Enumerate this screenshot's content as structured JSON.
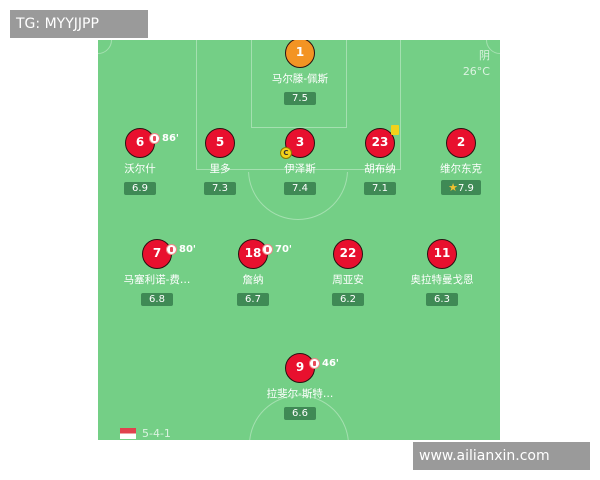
{
  "watermarks": {
    "top_left": "TG: MYYJJPP",
    "bottom_right": "www.ailianxin.com"
  },
  "weather": {
    "condition": "阴",
    "temperature": "26°C"
  },
  "formation": "5-4-1",
  "players": [
    {
      "number": "1",
      "name": "马尔滕-佩斯",
      "rating": "7.5",
      "role": "goalkeeper"
    },
    {
      "number": "6",
      "name": "沃尔什",
      "rating": "6.9",
      "sub_minute": "86'"
    },
    {
      "number": "5",
      "name": "里多",
      "rating": "7.3"
    },
    {
      "number": "3",
      "name": "伊泽斯",
      "rating": "7.4",
      "captain": "C"
    },
    {
      "number": "23",
      "name": "胡布纳",
      "rating": "7.1",
      "yellow_card": true
    },
    {
      "number": "2",
      "name": "维尔东克",
      "rating": "7.9",
      "man_of_match": true
    },
    {
      "number": "7",
      "name": "马塞利诺-费…",
      "rating": "6.8",
      "sub_minute": "80'"
    },
    {
      "number": "18",
      "name": "詹纳",
      "rating": "6.7",
      "sub_minute": "70'"
    },
    {
      "number": "22",
      "name": "周亚安",
      "rating": "6.2"
    },
    {
      "number": "11",
      "name": "奥拉特曼戈恩",
      "rating": "6.3"
    },
    {
      "number": "9",
      "name": "拉斐尔-斯特…",
      "rating": "6.6",
      "sub_minute": "46'"
    }
  ],
  "colors": {
    "pitch": "#74cf86",
    "player": "#e8102e",
    "goalkeeper": "#f39423",
    "rating_bg": "#3f8a55"
  }
}
